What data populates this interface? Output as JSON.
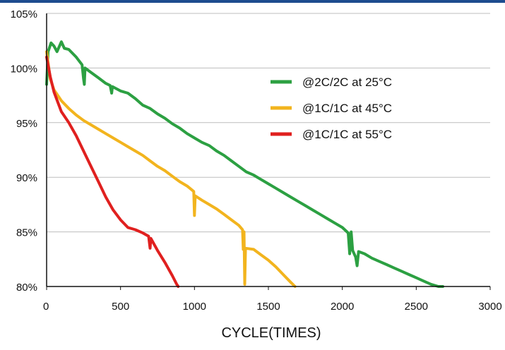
{
  "colors": {
    "header_rule": "#1e4c8f",
    "grid": "#bdbdbd",
    "axis": "#111111"
  },
  "chart_data": {
    "type": "line",
    "title": "",
    "xlabel": "CYCLE(TIMES)",
    "ylabel": "",
    "xlim": [
      0,
      3000
    ],
    "ylim": [
      80,
      105
    ],
    "x_ticks": [
      "0",
      "500",
      "1000",
      "1500",
      "2000",
      "2500",
      "3000"
    ],
    "y_ticks": [
      "80%",
      "85%",
      "90%",
      "95%",
      "100%",
      "105%"
    ],
    "grid": "horizontal",
    "legend_position": "top-right",
    "series": [
      {
        "name": "@2C/2C at 25°C",
        "color": "#2ca042",
        "points": [
          [
            0,
            98.5
          ],
          [
            10,
            101.5
          ],
          [
            30,
            102.3
          ],
          [
            50,
            102.0
          ],
          [
            70,
            101.5
          ],
          [
            100,
            102.4
          ],
          [
            120,
            101.8
          ],
          [
            150,
            101.7
          ],
          [
            200,
            101.0
          ],
          [
            240,
            100.3
          ],
          [
            250,
            99.0
          ],
          [
            255,
            98.5
          ],
          [
            260,
            100.0
          ],
          [
            300,
            99.6
          ],
          [
            350,
            99.1
          ],
          [
            400,
            98.6
          ],
          [
            430,
            98.4
          ],
          [
            440,
            97.7
          ],
          [
            445,
            98.3
          ],
          [
            500,
            97.9
          ],
          [
            550,
            97.7
          ],
          [
            600,
            97.2
          ],
          [
            650,
            96.6
          ],
          [
            700,
            96.3
          ],
          [
            750,
            95.8
          ],
          [
            800,
            95.4
          ],
          [
            850,
            94.9
          ],
          [
            900,
            94.5
          ],
          [
            950,
            94.0
          ],
          [
            1000,
            93.6
          ],
          [
            1050,
            93.2
          ],
          [
            1100,
            92.9
          ],
          [
            1150,
            92.4
          ],
          [
            1200,
            92.0
          ],
          [
            1250,
            91.5
          ],
          [
            1300,
            91.0
          ],
          [
            1350,
            90.5
          ],
          [
            1400,
            90.2
          ],
          [
            1450,
            89.8
          ],
          [
            1500,
            89.4
          ],
          [
            1550,
            89.0
          ],
          [
            1600,
            88.6
          ],
          [
            1650,
            88.2
          ],
          [
            1700,
            87.8
          ],
          [
            1750,
            87.4
          ],
          [
            1800,
            87.0
          ],
          [
            1850,
            86.6
          ],
          [
            1900,
            86.2
          ],
          [
            1950,
            85.8
          ],
          [
            2000,
            85.4
          ],
          [
            2040,
            84.9
          ],
          [
            2050,
            83.0
          ],
          [
            2060,
            85.0
          ],
          [
            2070,
            83.3
          ],
          [
            2090,
            82.7
          ],
          [
            2100,
            81.9
          ],
          [
            2110,
            83.2
          ],
          [
            2150,
            83.0
          ],
          [
            2200,
            82.6
          ],
          [
            2250,
            82.3
          ],
          [
            2300,
            82.0
          ],
          [
            2350,
            81.7
          ],
          [
            2400,
            81.4
          ],
          [
            2450,
            81.1
          ],
          [
            2500,
            80.8
          ],
          [
            2550,
            80.5
          ],
          [
            2600,
            80.2
          ],
          [
            2650,
            80.0
          ],
          [
            2680,
            80.0
          ]
        ]
      },
      {
        "name": "@1C/1C at 45°C",
        "color": "#f2b41e",
        "points": [
          [
            0,
            101.5
          ],
          [
            25,
            99.0
          ],
          [
            50,
            98.0
          ],
          [
            100,
            97.0
          ],
          [
            150,
            96.3
          ],
          [
            200,
            95.7
          ],
          [
            250,
            95.2
          ],
          [
            300,
            94.8
          ],
          [
            350,
            94.4
          ],
          [
            400,
            94.0
          ],
          [
            450,
            93.6
          ],
          [
            500,
            93.2
          ],
          [
            550,
            92.8
          ],
          [
            600,
            92.4
          ],
          [
            650,
            92.0
          ],
          [
            700,
            91.5
          ],
          [
            750,
            91.0
          ],
          [
            800,
            90.6
          ],
          [
            850,
            90.1
          ],
          [
            900,
            89.6
          ],
          [
            950,
            89.2
          ],
          [
            995,
            88.7
          ],
          [
            1000,
            86.5
          ],
          [
            1005,
            88.3
          ],
          [
            1050,
            87.9
          ],
          [
            1100,
            87.5
          ],
          [
            1150,
            87.1
          ],
          [
            1200,
            86.6
          ],
          [
            1250,
            86.1
          ],
          [
            1300,
            85.6
          ],
          [
            1325,
            85.2
          ],
          [
            1330,
            83.4
          ],
          [
            1335,
            85.0
          ],
          [
            1340,
            80.2
          ],
          [
            1345,
            83.5
          ],
          [
            1400,
            83.4
          ],
          [
            1450,
            82.9
          ],
          [
            1500,
            82.4
          ],
          [
            1550,
            81.8
          ],
          [
            1600,
            81.1
          ],
          [
            1650,
            80.4
          ],
          [
            1680,
            80.0
          ]
        ]
      },
      {
        "name": "@1C/1C at 55°C",
        "color": "#e0201f",
        "points": [
          [
            0,
            101.0
          ],
          [
            25,
            99.2
          ],
          [
            50,
            97.8
          ],
          [
            100,
            96.0
          ],
          [
            150,
            95.0
          ],
          [
            200,
            93.8
          ],
          [
            250,
            92.4
          ],
          [
            300,
            91.0
          ],
          [
            350,
            89.6
          ],
          [
            400,
            88.2
          ],
          [
            450,
            87.0
          ],
          [
            500,
            86.1
          ],
          [
            550,
            85.4
          ],
          [
            600,
            85.2
          ],
          [
            650,
            84.9
          ],
          [
            690,
            84.6
          ],
          [
            700,
            83.5
          ],
          [
            705,
            84.4
          ],
          [
            750,
            83.3
          ],
          [
            800,
            82.2
          ],
          [
            850,
            81.0
          ],
          [
            880,
            80.2
          ],
          [
            890,
            80.0
          ]
        ]
      }
    ]
  }
}
